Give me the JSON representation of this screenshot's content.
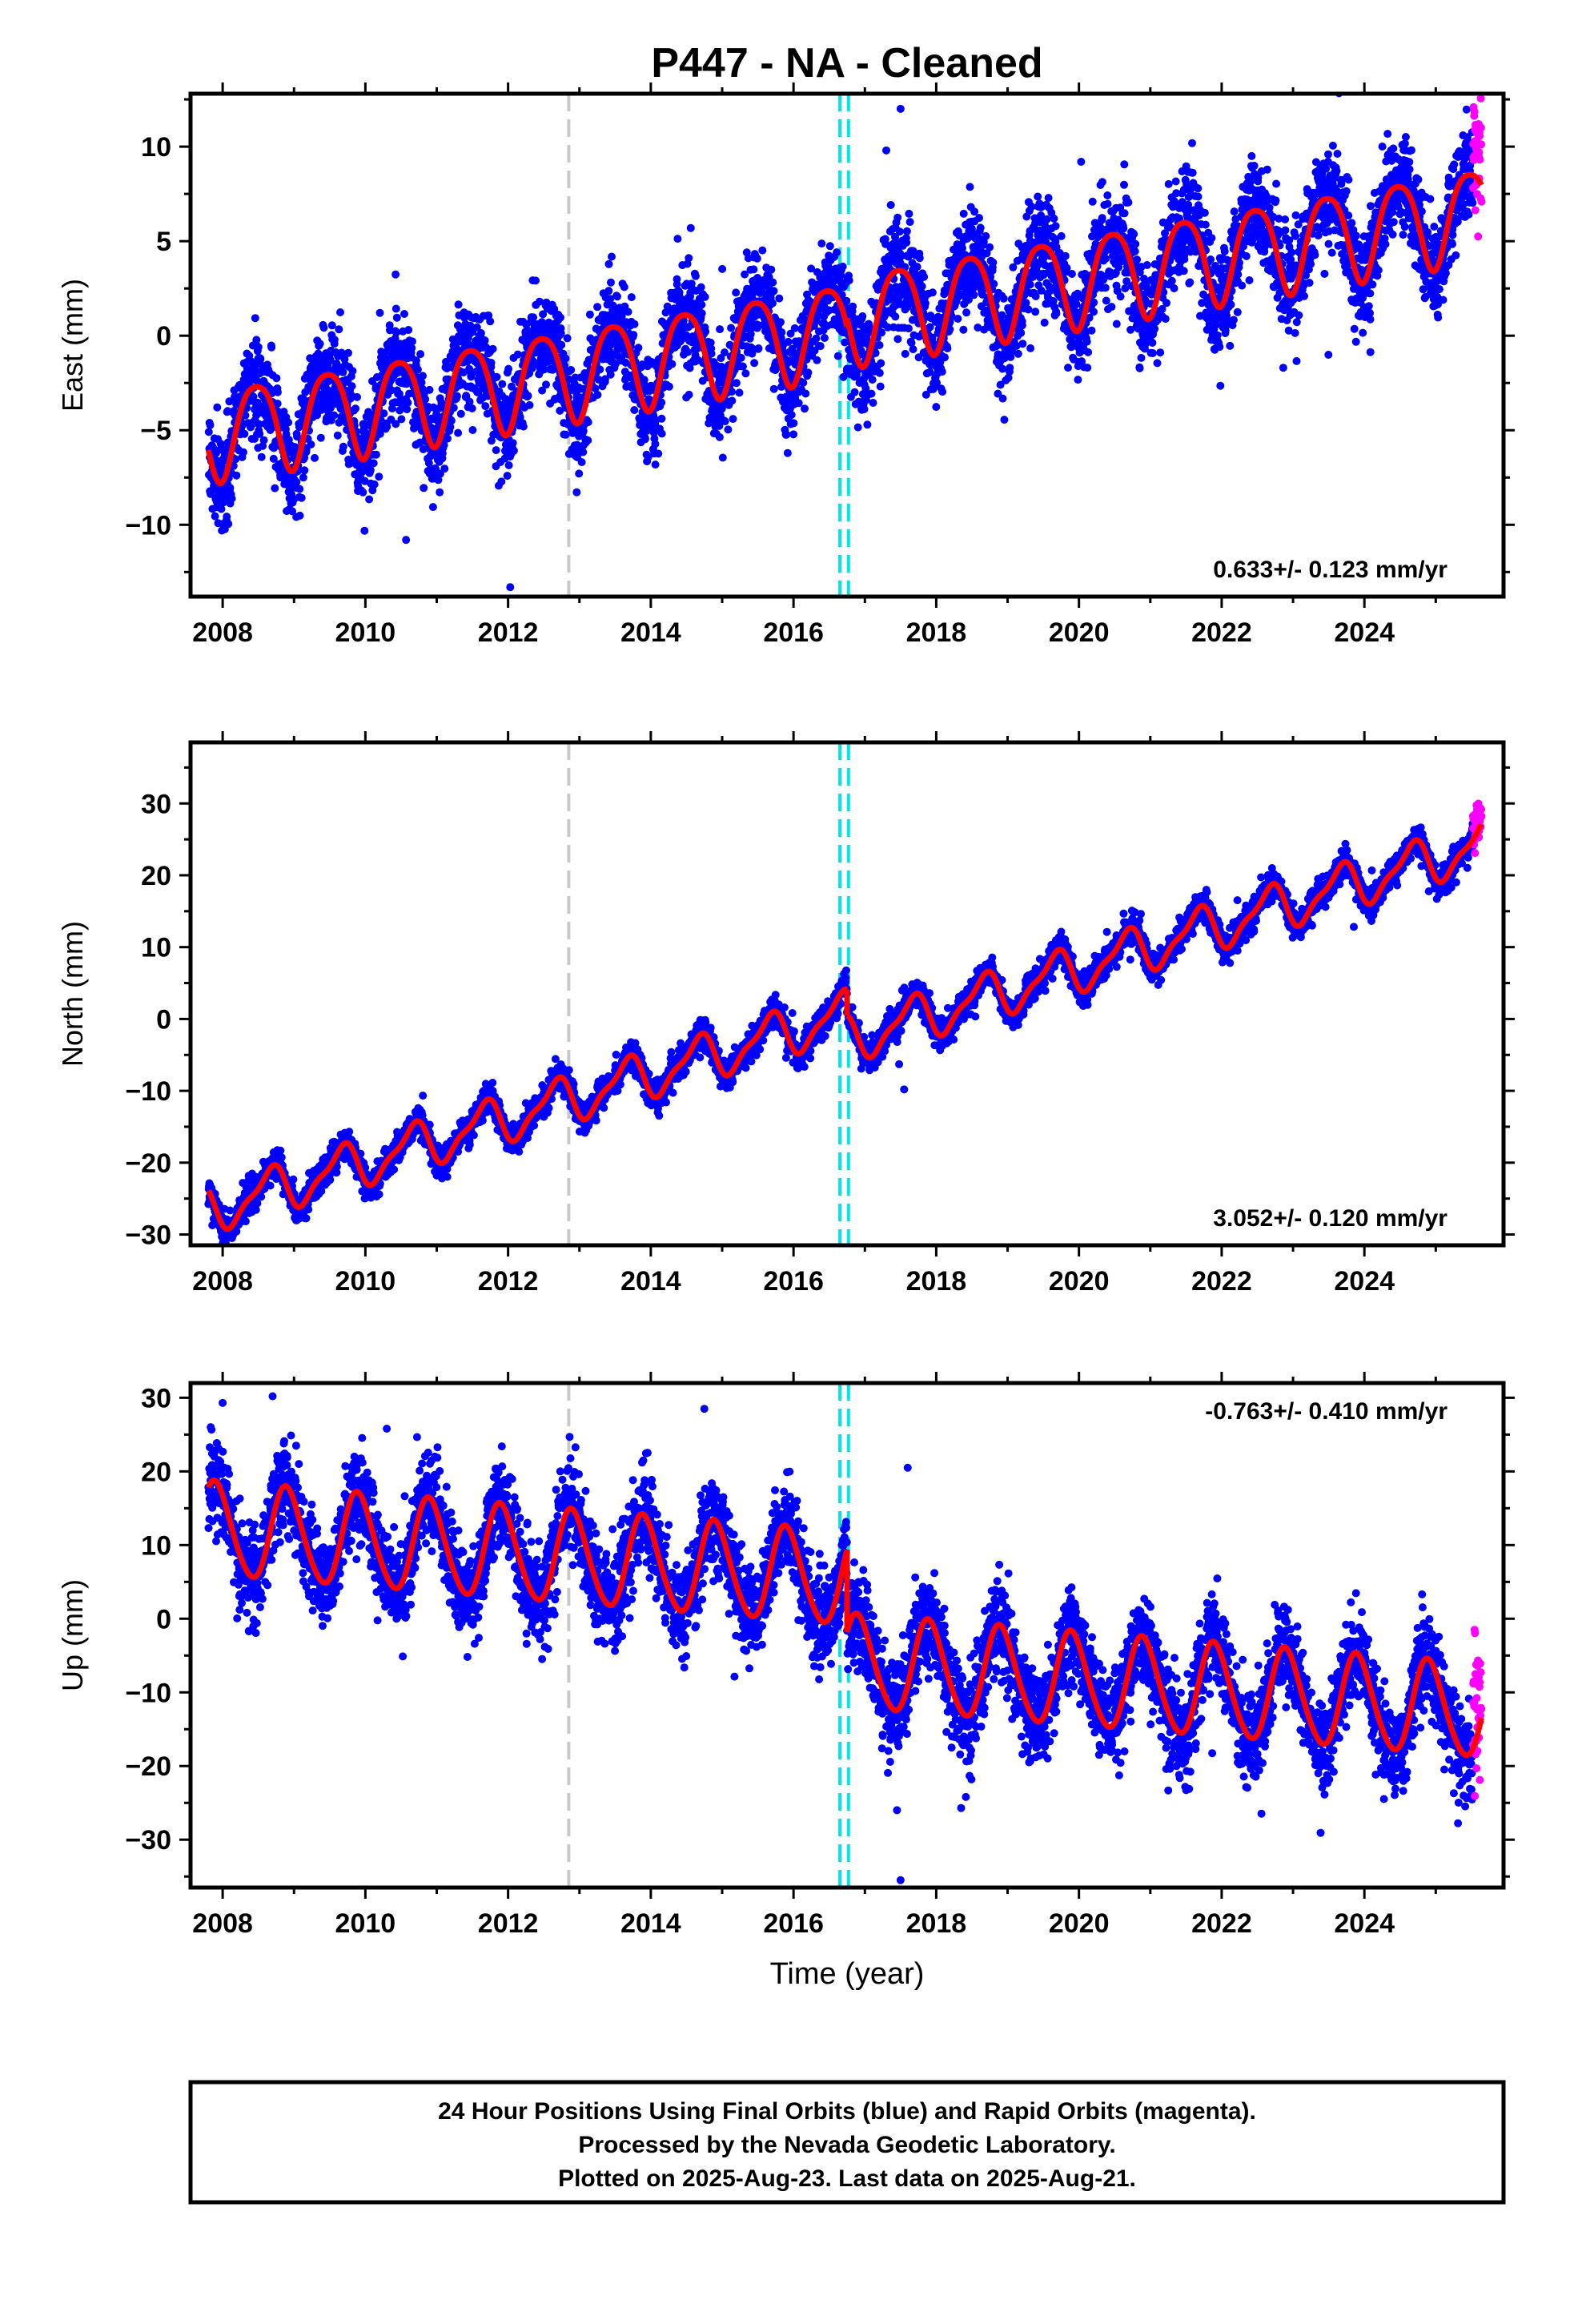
{
  "title": "P447  - NA - Cleaned",
  "colors": {
    "final_orbits": "#0000ff",
    "rapid_orbits": "#ff00ff",
    "model_fit": "#ff0000",
    "equipment_change": "#c8c8c8",
    "earthquake": "#00e6e6",
    "frame": "#000000"
  },
  "footer": {
    "line1": "24 Hour Positions Using Final Orbits (blue) and Rapid Orbits (magenta).",
    "line2": "Processed by the Nevada Geodetic Laboratory.",
    "line3": "Plotted on 2025-Aug-23. Last data on 2025-Aug-21."
  },
  "xlabel": "Time (year)",
  "chart_data": [
    {
      "type": "scatter",
      "component": "east",
      "ylabel": "East (mm)",
      "rate_label": "0.633+/- 0.123 mm/yr",
      "rate_position": "bottom-right",
      "xlim": [
        2007.55,
        2025.95
      ],
      "ylim": [
        -13.8,
        12.8
      ],
      "xticks": [
        2008,
        2010,
        2012,
        2014,
        2016,
        2018,
        2020,
        2022,
        2024
      ],
      "xtick_labels": [
        "2008",
        "2010",
        "2012",
        "2014",
        "2016",
        "2018",
        "2020",
        "2022",
        "2024"
      ],
      "yticks": [
        -10,
        -5,
        0,
        5,
        10
      ],
      "ytick_labels": [
        "−10",
        "−5",
        "0",
        "5",
        "10"
      ],
      "data_start": 2007.8,
      "data_end": 2025.64,
      "rapid_start": 2025.52,
      "model": {
        "segments": [
          {
            "start": 2007.8,
            "end": 2016.75,
            "offset": -5.0
          },
          {
            "start": 2016.75,
            "end": 2025.64,
            "offset": -4.55
          }
        ],
        "rate": 0.633,
        "ref_year": 2008.0,
        "annual_amplitude": 2.4,
        "annual_phase_year": 0.22,
        "semiannual_amplitude": 0.4,
        "semiannual_phase_year": 0.1,
        "scatter_sd": 1.3
      },
      "vertical_lines": [
        {
          "x": 2012.85,
          "kind": "equipment_change"
        },
        {
          "x": 2016.65,
          "kind": "earthquake"
        },
        {
          "x": 2016.77,
          "kind": "earthquake"
        }
      ],
      "outliers": [
        {
          "x": 2017.5,
          "y": 12.0
        },
        {
          "x": 2017.3,
          "y": 9.8
        },
        {
          "x": 2012.03,
          "y": -13.3
        },
        {
          "x": 2010.57,
          "y": -10.8
        },
        {
          "x": 2020.03,
          "y": 9.2
        }
      ]
    },
    {
      "type": "scatter",
      "component": "north",
      "ylabel": "North (mm)",
      "rate_label": "3.052+/- 0.120 mm/yr",
      "rate_position": "bottom-right",
      "xlim": [
        2007.55,
        2025.95
      ],
      "ylim": [
        -31.5,
        38.5
      ],
      "xticks": [
        2008,
        2010,
        2012,
        2014,
        2016,
        2018,
        2020,
        2022,
        2024
      ],
      "xtick_labels": [
        "2008",
        "2010",
        "2012",
        "2014",
        "2016",
        "2018",
        "2020",
        "2022",
        "2024"
      ],
      "yticks": [
        -30,
        -20,
        -10,
        0,
        10,
        20,
        30
      ],
      "ytick_labels": [
        "−30",
        "−20",
        "−10",
        "0",
        "10",
        "20",
        "30"
      ],
      "data_start": 2007.8,
      "data_end": 2025.64,
      "rapid_start": 2025.52,
      "model": {
        "segments": [
          {
            "start": 2007.8,
            "end": 2016.75,
            "offset": -26.0
          },
          {
            "start": 2016.75,
            "end": 2025.64,
            "offset": -29.6
          }
        ],
        "rate": 3.052,
        "ref_year": 2008.0,
        "annual_amplitude": 3.0,
        "annual_phase_year": 0.4,
        "semiannual_amplitude": 1.0,
        "semiannual_phase_year": 0.15,
        "scatter_sd": 1.0
      },
      "vertical_lines": [
        {
          "x": 2012.85,
          "kind": "equipment_change"
        },
        {
          "x": 2016.65,
          "kind": "earthquake"
        },
        {
          "x": 2016.77,
          "kind": "earthquake"
        }
      ],
      "outliers": [
        {
          "x": 2017.48,
          "y": -6.3
        },
        {
          "x": 2017.55,
          "y": -9.8
        }
      ]
    },
    {
      "type": "scatter",
      "component": "up",
      "ylabel": "Up (mm)",
      "rate_label": "-0.763+/- 0.410 mm/yr",
      "rate_position": "top-right",
      "xlim": [
        2007.55,
        2025.95
      ],
      "ylim": [
        -36.5,
        32.0
      ],
      "xticks": [
        2008,
        2010,
        2012,
        2014,
        2016,
        2018,
        2020,
        2022,
        2024
      ],
      "xtick_labels": [
        "2008",
        "2010",
        "2012",
        "2014",
        "2016",
        "2018",
        "2020",
        "2022",
        "2024"
      ],
      "yticks": [
        -30,
        -20,
        -10,
        0,
        10,
        20,
        30
      ],
      "ytick_labels": [
        "−30",
        "−20",
        "−10",
        "0",
        "10",
        "20",
        "30"
      ],
      "data_start": 2007.8,
      "data_end": 2025.64,
      "rapid_start": 2025.52,
      "model": {
        "segments": [
          {
            "start": 2007.8,
            "end": 2016.75,
            "offset": 12.0
          },
          {
            "start": 2016.75,
            "end": 2025.64,
            "offset": 0.8
          }
        ],
        "rate": -0.763,
        "ref_year": 2008.0,
        "annual_amplitude": 6.3,
        "annual_phase_year": 0.65,
        "semiannual_amplitude": 0.6,
        "semiannual_phase_year": 0.2,
        "scatter_sd": 3.2
      },
      "vertical_lines": [
        {
          "x": 2012.85,
          "kind": "equipment_change"
        },
        {
          "x": 2016.65,
          "kind": "earthquake"
        },
        {
          "x": 2016.77,
          "kind": "earthquake"
        }
      ],
      "outliers": [
        {
          "x": 2008.7,
          "y": 30.2
        },
        {
          "x": 2014.75,
          "y": 28.5
        },
        {
          "x": 2008.0,
          "y": 29.3
        },
        {
          "x": 2017.5,
          "y": -35.5
        },
        {
          "x": 2017.45,
          "y": -26.0
        },
        {
          "x": 2010.3,
          "y": 25.8
        },
        {
          "x": 2017.6,
          "y": 20.5
        }
      ]
    }
  ]
}
